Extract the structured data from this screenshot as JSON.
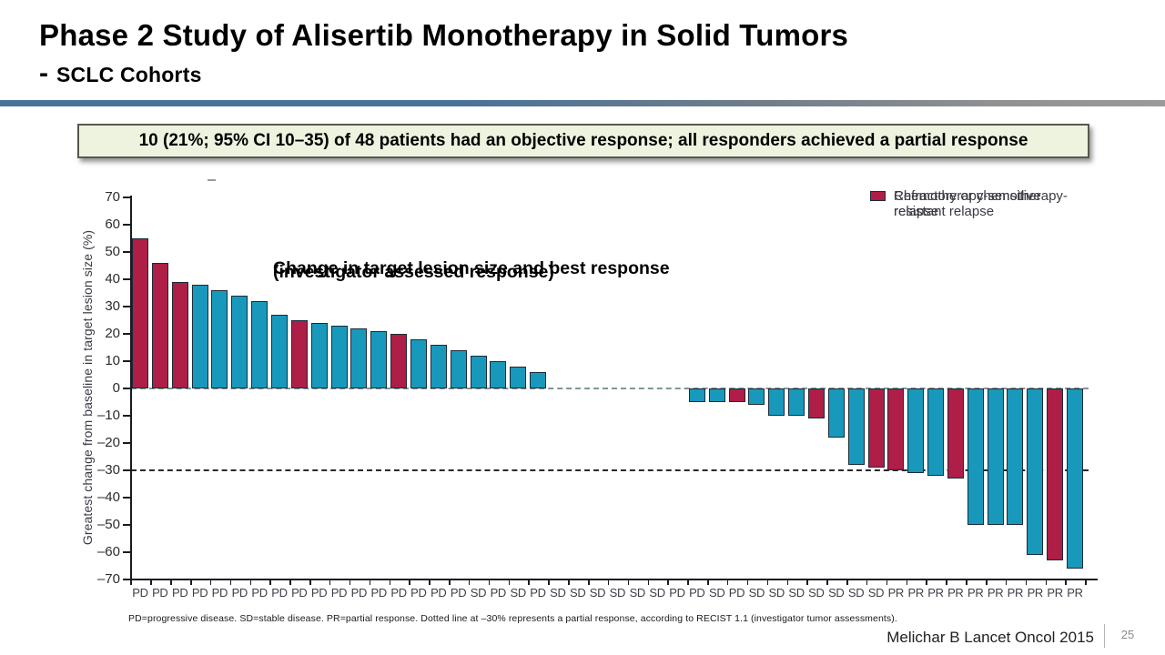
{
  "slide": {
    "title": "Phase 2 Study of Alisertib Monotherapy in Solid Tumors",
    "subtitle_prefix": "-",
    "subtitle": "SCLC Cohorts",
    "highlight": "10 (21%; 95% CI 10–35) of 48 patients had an objective response; all responders achieved a partial response",
    "footer_citation": "Melichar B Lancet Oncol 2015",
    "page_number": "25"
  },
  "colors": {
    "sensitive": "#1899bb",
    "refractory": "#ae1e46",
    "bar_border": "#1b2b3a",
    "axis": "#1a1a22",
    "zero_line": "#7f9799",
    "pr_threshold_line": "#2a2a2a",
    "accent_rule": "#4a7298",
    "highlight_bg": "#eef3df"
  },
  "chart_data": {
    "type": "bar",
    "subtype": "waterfall",
    "title_line1": "Change in target lesion size and best response",
    "title_line2": "(investigator assessed response)",
    "ylabel": "Greatest change from baseline in target lesion size (%)",
    "ylim": [
      -70,
      70
    ],
    "yticks": [
      70,
      60,
      50,
      40,
      30,
      20,
      10,
      0,
      -10,
      -20,
      -30,
      -40,
      -50,
      -60,
      -70
    ],
    "reference_lines": [
      {
        "y": 0,
        "style": "dashed"
      },
      {
        "y": -30,
        "style": "dashed",
        "meaning": "partial response threshold per RECIST 1.1"
      }
    ],
    "legend": [
      {
        "label": "Chemotherapy-sensitive relapse",
        "cohort": "sensitive"
      },
      {
        "label": "Refractory or chemotherapy-resistant relapse",
        "cohort": "refractory"
      }
    ],
    "legend_position": "top-right",
    "footnote": "PD=progressive disease. SD=stable disease. PR=partial response. Dotted line at –30% represents a partial response, according to RECIST 1.1 (investigator tumor assessments).",
    "patients": [
      {
        "change": 55,
        "cohort": "refractory",
        "response": "PD"
      },
      {
        "change": 46,
        "cohort": "refractory",
        "response": "PD"
      },
      {
        "change": 39,
        "cohort": "refractory",
        "response": "PD"
      },
      {
        "change": 38,
        "cohort": "sensitive",
        "response": "PD"
      },
      {
        "change": 36,
        "cohort": "sensitive",
        "response": "PD"
      },
      {
        "change": 34,
        "cohort": "sensitive",
        "response": "PD"
      },
      {
        "change": 32,
        "cohort": "sensitive",
        "response": "PD"
      },
      {
        "change": 27,
        "cohort": "sensitive",
        "response": "PD"
      },
      {
        "change": 25,
        "cohort": "refractory",
        "response": "PD"
      },
      {
        "change": 24,
        "cohort": "sensitive",
        "response": "PD"
      },
      {
        "change": 23,
        "cohort": "sensitive",
        "response": "PD"
      },
      {
        "change": 22,
        "cohort": "sensitive",
        "response": "PD"
      },
      {
        "change": 21,
        "cohort": "sensitive",
        "response": "PD"
      },
      {
        "change": 20,
        "cohort": "refractory",
        "response": "PD"
      },
      {
        "change": 18,
        "cohort": "sensitive",
        "response": "PD"
      },
      {
        "change": 16,
        "cohort": "sensitive",
        "response": "PD"
      },
      {
        "change": 14,
        "cohort": "sensitive",
        "response": "PD"
      },
      {
        "change": 12,
        "cohort": "sensitive",
        "response": "SD"
      },
      {
        "change": 10,
        "cohort": "sensitive",
        "response": "PD"
      },
      {
        "change": 8,
        "cohort": "sensitive",
        "response": "SD"
      },
      {
        "change": 6,
        "cohort": "sensitive",
        "response": "PD"
      },
      {
        "change": 0,
        "cohort": null,
        "response": "SD"
      },
      {
        "change": 0,
        "cohort": null,
        "response": "SD"
      },
      {
        "change": 0,
        "cohort": null,
        "response": "SD"
      },
      {
        "change": 0,
        "cohort": null,
        "response": "SD"
      },
      {
        "change": 0,
        "cohort": null,
        "response": "SD"
      },
      {
        "change": 0,
        "cohort": null,
        "response": "SD"
      },
      {
        "change": 0,
        "cohort": null,
        "response": "PD"
      },
      {
        "change": -5,
        "cohort": "sensitive",
        "response": "PD"
      },
      {
        "change": -5,
        "cohort": "sensitive",
        "response": "SD"
      },
      {
        "change": -5,
        "cohort": "refractory",
        "response": "PD"
      },
      {
        "change": -6,
        "cohort": "sensitive",
        "response": "SD"
      },
      {
        "change": -10,
        "cohort": "sensitive",
        "response": "SD"
      },
      {
        "change": -10,
        "cohort": "sensitive",
        "response": "SD"
      },
      {
        "change": -11,
        "cohort": "refractory",
        "response": "SD"
      },
      {
        "change": -18,
        "cohort": "sensitive",
        "response": "SD"
      },
      {
        "change": -28,
        "cohort": "sensitive",
        "response": "SD"
      },
      {
        "change": -29,
        "cohort": "refractory",
        "response": "SD"
      },
      {
        "change": -30,
        "cohort": "refractory",
        "response": "PR"
      },
      {
        "change": -31,
        "cohort": "sensitive",
        "response": "PR"
      },
      {
        "change": -32,
        "cohort": "sensitive",
        "response": "PR"
      },
      {
        "change": -33,
        "cohort": "refractory",
        "response": "PR"
      },
      {
        "change": -50,
        "cohort": "sensitive",
        "response": "PR"
      },
      {
        "change": -50,
        "cohort": "sensitive",
        "response": "PR"
      },
      {
        "change": -50,
        "cohort": "sensitive",
        "response": "PR"
      },
      {
        "change": -61,
        "cohort": "sensitive",
        "response": "PR"
      },
      {
        "change": -63,
        "cohort": "refractory",
        "response": "PR"
      },
      {
        "change": -66,
        "cohort": "sensitive",
        "response": "PR"
      }
    ]
  }
}
